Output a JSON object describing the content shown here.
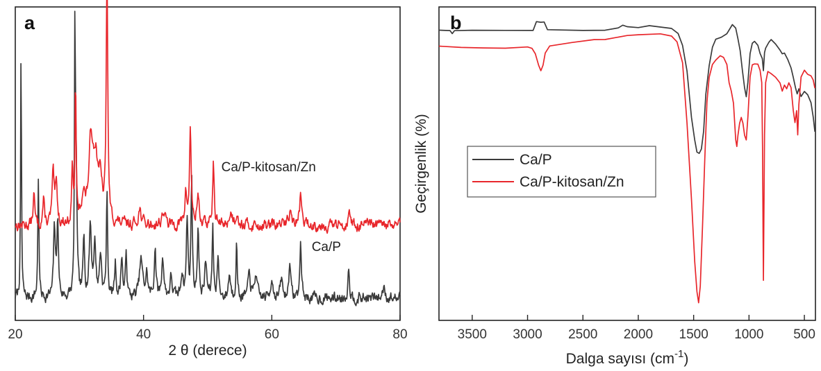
{
  "chart_data": [
    {
      "panel": "a",
      "type": "line",
      "xlabel": "2 θ (derece)",
      "ylabel": "",
      "xlim": [
        20,
        80
      ],
      "xticks": [
        20,
        40,
        60,
        80
      ],
      "y_tick_labels": false,
      "legend": "none",
      "series": [
        {
          "name": "Ca/P-kitosan/Zn",
          "color": "#e8262b",
          "label_at": {
            "x": 59.5,
            "y": 8.8
          },
          "baseline": 5.6,
          "noise": 0.35,
          "peaks": [
            [
              22.9,
              1.8,
              0.15
            ],
            [
              24.4,
              1.4,
              0.15
            ],
            [
              25.9,
              2.8,
              0.2
            ],
            [
              26.4,
              2.1,
              0.2
            ],
            [
              28.9,
              3.5,
              0.12
            ],
            [
              29.4,
              8.5,
              0.1
            ],
            [
              30.6,
              1.6,
              0.3
            ],
            [
              31.8,
              4.6,
              0.4
            ],
            [
              32.5,
              3.2,
              0.4
            ],
            [
              33.2,
              2.2,
              0.4
            ],
            [
              34.3,
              14.8,
              0.14
            ],
            [
              39.4,
              0.9,
              0.3
            ],
            [
              43.1,
              0.8,
              0.3
            ],
            [
              46.6,
              1.8,
              0.2
            ],
            [
              47.3,
              5.8,
              0.15
            ],
            [
              48.5,
              1.8,
              0.2
            ],
            [
              50.9,
              3.6,
              0.15
            ],
            [
              53.6,
              0.7,
              0.3
            ],
            [
              54.6,
              0.9,
              0.2
            ],
            [
              62.8,
              0.8,
              0.3
            ],
            [
              64.5,
              1.8,
              0.2
            ],
            [
              72.0,
              1.1,
              0.15
            ]
          ]
        },
        {
          "name": "Ca/P",
          "color": "#3a3a3a",
          "label_at": {
            "x": 68.5,
            "y": 4.1
          },
          "baseline": 1.3,
          "noise": 0.35,
          "peaks": [
            [
              20.9,
              14.5,
              0.08
            ],
            [
              23.6,
              7.2,
              0.1
            ],
            [
              26.1,
              4.2,
              0.15
            ],
            [
              26.6,
              4.6,
              0.15
            ],
            [
              29.3,
              15.5,
              0.08
            ],
            [
              29.5,
              7.0,
              0.15
            ],
            [
              30.7,
              3.4,
              0.15
            ],
            [
              31.7,
              4.2,
              0.2
            ],
            [
              32.4,
              3.0,
              0.2
            ],
            [
              33.3,
              2.5,
              0.2
            ],
            [
              34.3,
              6.0,
              0.12
            ],
            [
              35.6,
              2.0,
              0.15
            ],
            [
              36.6,
              2.5,
              0.15
            ],
            [
              37.3,
              2.8,
              0.12
            ],
            [
              39.6,
              2.2,
              0.3
            ],
            [
              40.5,
              1.3,
              0.2
            ],
            [
              41.8,
              3.0,
              0.15
            ],
            [
              43.0,
              2.4,
              0.2
            ],
            [
              44.3,
              1.2,
              0.2
            ],
            [
              46.0,
              1.5,
              0.2
            ],
            [
              46.8,
              4.6,
              0.15
            ],
            [
              47.5,
              7.2,
              0.12
            ],
            [
              48.5,
              4.1,
              0.15
            ],
            [
              49.7,
              2.0,
              0.2
            ],
            [
              50.8,
              4.2,
              0.12
            ],
            [
              51.6,
              2.4,
              0.15
            ],
            [
              53.4,
              1.4,
              0.2
            ],
            [
              54.5,
              3.3,
              0.12
            ],
            [
              56.5,
              1.5,
              0.2
            ],
            [
              57.5,
              1.5,
              0.2
            ],
            [
              60.0,
              1.3,
              0.2
            ],
            [
              61.5,
              1.1,
              0.2
            ],
            [
              62.8,
              2.4,
              0.15
            ],
            [
              64.5,
              3.2,
              0.15
            ],
            [
              72.0,
              1.9,
              0.15
            ],
            [
              77.5,
              0.8,
              0.2
            ]
          ]
        }
      ]
    },
    {
      "panel": "b",
      "type": "line",
      "xlabel": "Dalga sayısı (cm⁻¹)",
      "ylabel": "Geçirgenlik (%)",
      "xlim": [
        3800,
        400
      ],
      "x_reversed": true,
      "xticks": [
        3500,
        3000,
        2500,
        2000,
        1500,
        1000,
        500
      ],
      "y_tick_labels": false,
      "legend": "center-left",
      "series": [
        {
          "name": "Ca/P",
          "color": "#3a3a3a",
          "baseline": 100,
          "points": [
            [
              3800,
              100
            ],
            [
              3700,
              100
            ],
            [
              3680,
              99
            ],
            [
              3660,
              100
            ],
            [
              3500,
              100
            ],
            [
              3200,
              100
            ],
            [
              2950,
              100
            ],
            [
              2920,
              103
            ],
            [
              2880,
              102.5
            ],
            [
              2850,
              103
            ],
            [
              2820,
              100
            ],
            [
              2500,
              100
            ],
            [
              2300,
              100.2
            ],
            [
              2180,
              101
            ],
            [
              2140,
              101.5
            ],
            [
              2100,
              101
            ],
            [
              2000,
              101
            ],
            [
              1900,
              101.3
            ],
            [
              1800,
              101
            ],
            [
              1700,
              100.5
            ],
            [
              1640,
              99
            ],
            [
              1600,
              95
            ],
            [
              1560,
              86
            ],
            [
              1520,
              70
            ],
            [
              1490,
              62
            ],
            [
              1470,
              58
            ],
            [
              1450,
              57.5
            ],
            [
              1430,
              59
            ],
            [
              1410,
              65
            ],
            [
              1390,
              78
            ],
            [
              1360,
              88
            ],
            [
              1330,
              94
            ],
            [
              1300,
              97
            ],
            [
              1250,
              97.5
            ],
            [
              1200,
              99
            ],
            [
              1150,
              102
            ],
            [
              1120,
              101
            ],
            [
              1100,
              97
            ],
            [
              1080,
              93
            ],
            [
              1060,
              86
            ],
            [
              1040,
              80
            ],
            [
              1025,
              77
            ],
            [
              1010,
              82
            ],
            [
              990,
              92
            ],
            [
              970,
              95.5
            ],
            [
              950,
              96
            ],
            [
              920,
              95
            ],
            [
              900,
              92
            ],
            [
              880,
              90.5
            ],
            [
              870,
              86
            ],
            [
              860,
              92
            ],
            [
              850,
              94
            ],
            [
              820,
              96
            ],
            [
              800,
              96.5
            ],
            [
              760,
              95
            ],
            [
              720,
              93
            ],
            [
              700,
              92
            ],
            [
              680,
              92
            ],
            [
              650,
              90
            ],
            [
              620,
              87
            ],
            [
              600,
              84
            ],
            [
              580,
              80
            ],
            [
              565,
              78
            ],
            [
              550,
              80
            ],
            [
              530,
              77
            ],
            [
              500,
              79
            ],
            [
              470,
              78
            ],
            [
              440,
              75
            ],
            [
              420,
              70
            ],
            [
              405,
              65
            ]
          ]
        },
        {
          "name": "Ca/P-kitosan/Zn",
          "color": "#e8262b",
          "baseline": 94.5,
          "points": [
            [
              3800,
              94.5
            ],
            [
              3600,
              94.2
            ],
            [
              3400,
              93.8
            ],
            [
              3200,
              94
            ],
            [
              3000,
              94.5
            ],
            [
              2960,
              94
            ],
            [
              2930,
              92
            ],
            [
              2900,
              88
            ],
            [
              2880,
              86
            ],
            [
              2860,
              88
            ],
            [
              2840,
              92
            ],
            [
              2800,
              94.5
            ],
            [
              2600,
              96
            ],
            [
              2400,
              96.6
            ],
            [
              2300,
              97
            ],
            [
              2200,
              97.5
            ],
            [
              2100,
              98
            ],
            [
              2000,
              98.5
            ],
            [
              1800,
              98.5
            ],
            [
              1700,
              98
            ],
            [
              1650,
              96
            ],
            [
              1600,
              89
            ],
            [
              1560,
              68
            ],
            [
              1520,
              42
            ],
            [
              1490,
              20
            ],
            [
              1470,
              10
            ],
            [
              1455,
              6
            ],
            [
              1440,
              12
            ],
            [
              1420,
              32
            ],
            [
              1400,
              55
            ],
            [
              1380,
              75
            ],
            [
              1360,
              84
            ],
            [
              1330,
              88
            ],
            [
              1300,
              90
            ],
            [
              1260,
              91
            ],
            [
              1230,
              90.5
            ],
            [
              1200,
              88
            ],
            [
              1180,
              82
            ],
            [
              1160,
              79
            ],
            [
              1140,
              75
            ],
            [
              1120,
              62
            ],
            [
              1110,
              60
            ],
            [
              1100,
              64
            ],
            [
              1085,
              68
            ],
            [
              1070,
              70
            ],
            [
              1055,
              68
            ],
            [
              1040,
              64
            ],
            [
              1025,
              62
            ],
            [
              1010,
              70
            ],
            [
              990,
              84
            ],
            [
              970,
              88
            ],
            [
              950,
              88.5
            ],
            [
              920,
              88
            ],
            [
              900,
              86
            ],
            [
              885,
              82
            ],
            [
              878,
              60
            ],
            [
              873,
              30
            ],
            [
              870,
              14
            ],
            [
              867,
              30
            ],
            [
              860,
              64
            ],
            [
              850,
              82
            ],
            [
              830,
              86
            ],
            [
              800,
              85
            ],
            [
              760,
              84
            ],
            [
              720,
              82
            ],
            [
              700,
              79
            ],
            [
              680,
              81
            ],
            [
              660,
              80
            ],
            [
              640,
              82
            ],
            [
              620,
              80
            ],
            [
              600,
              72
            ],
            [
              585,
              68
            ],
            [
              570,
              72
            ],
            [
              560,
              64
            ],
            [
              550,
              74
            ],
            [
              530,
              84
            ],
            [
              500,
              86
            ],
            [
              470,
              85
            ],
            [
              440,
              84
            ],
            [
              420,
              83
            ],
            [
              405,
              80
            ]
          ]
        }
      ]
    }
  ]
}
